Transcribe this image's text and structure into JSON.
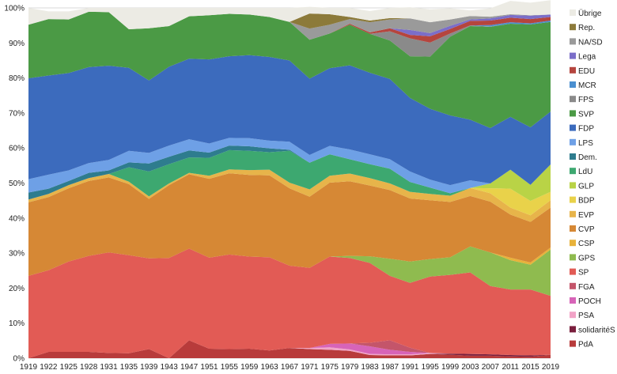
{
  "chart_data": {
    "type": "area",
    "stacked": true,
    "x": [
      "1919",
      "1922",
      "1925",
      "1928",
      "1931",
      "1935",
      "1939",
      "1943",
      "1947",
      "1951",
      "1955",
      "1959",
      "1963",
      "1967",
      "1971",
      "1975",
      "1979",
      "1983",
      "1987",
      "1991",
      "1995",
      "1999",
      "2003",
      "2007",
      "2011",
      "2015",
      "2019"
    ],
    "y_ticks": [
      "0%",
      "10%",
      "20%",
      "30%",
      "40%",
      "50%",
      "60%",
      "70%",
      "80%",
      "90%",
      "100%"
    ],
    "ylim": [
      0,
      100
    ],
    "grid": true,
    "legend_position": "right",
    "series": [
      {
        "name": "PdA",
        "color": "#b83b3b",
        "values": [
          0,
          1.8,
          1.8,
          1.8,
          1.5,
          1.4,
          2.6,
          0,
          5.1,
          2.7,
          2.6,
          2.7,
          2.2,
          2.9,
          2.6,
          2.4,
          2.1,
          0.9,
          0.8,
          0.8,
          1.2,
          1.0,
          0.7,
          0.7,
          0.5,
          0.4,
          1.0
        ]
      },
      {
        "name": "solidaritéS",
        "color": "#7a1f3d",
        "values": [
          0,
          0,
          0,
          0,
          0,
          0,
          0,
          0,
          0,
          0,
          0,
          0,
          0,
          0,
          0,
          0,
          0,
          0,
          0,
          0,
          0,
          0.3,
          0.5,
          0.4,
          0.4,
          0.4,
          0
        ]
      },
      {
        "name": "PSA",
        "color": "#f2a3c7",
        "values": [
          0,
          0,
          0,
          0,
          0,
          0,
          0,
          0,
          0,
          0,
          0,
          0,
          0,
          0,
          0.3,
          0.7,
          0.4,
          0.3,
          0.3,
          0.3,
          0.3,
          0,
          0,
          0,
          0,
          0,
          0
        ]
      },
      {
        "name": "POCH",
        "color": "#d764b8",
        "values": [
          0,
          0,
          0,
          0,
          0,
          0,
          0,
          0,
          0,
          0,
          0,
          0,
          0,
          0,
          0,
          1.0,
          1.7,
          2.2,
          1.3,
          0.7,
          0,
          0,
          0,
          0,
          0,
          0,
          0
        ]
      },
      {
        "name": "FGA",
        "color": "#c4556a",
        "values": [
          0,
          0,
          0,
          0,
          0,
          0,
          0,
          0,
          0,
          0,
          0,
          0,
          0,
          0,
          0,
          0,
          0,
          1.0,
          2.7,
          1.2,
          0,
          0,
          0,
          0,
          0,
          0,
          0
        ]
      },
      {
        "name": "SP",
        "color": "#e25b55",
        "values": [
          23.5,
          23.3,
          25.8,
          27.4,
          28.7,
          28.0,
          25.9,
          28.6,
          26.2,
          26.0,
          27.0,
          26.3,
          26.6,
          23.5,
          22.9,
          24.9,
          24.4,
          22.8,
          18.4,
          18.5,
          21.8,
          22.5,
          23.3,
          19.5,
          18.7,
          18.8,
          16.8
        ]
      },
      {
        "name": "GPS",
        "color": "#8fbb4f",
        "values": [
          0,
          0,
          0,
          0,
          0,
          0,
          0,
          0,
          0,
          0,
          0,
          0,
          0,
          0,
          0,
          0,
          0.6,
          1.9,
          4.9,
          6.1,
          5.0,
          5.0,
          7.4,
          9.6,
          8.4,
          7.1,
          13.2
        ]
      },
      {
        "name": "CSP",
        "color": "#e8b23a",
        "values": [
          0,
          0,
          0,
          0,
          0,
          0,
          0,
          0,
          0,
          0,
          0,
          0,
          0,
          0,
          0,
          0,
          0,
          0,
          0,
          0,
          0,
          0,
          0,
          0,
          0.7,
          0.6,
          0.6
        ]
      },
      {
        "name": "CVP",
        "color": "#d68835",
        "values": [
          21.0,
          20.9,
          20.9,
          21.4,
          21.4,
          20.3,
          17.0,
          20.8,
          21.2,
          22.5,
          23.2,
          23.3,
          23.4,
          22.1,
          20.3,
          21.1,
          21.3,
          20.2,
          19.6,
          18.0,
          16.8,
          15.8,
          14.4,
          14.5,
          12.3,
          11.6,
          11.4
        ]
      },
      {
        "name": "EVP",
        "color": "#e7b44a",
        "values": [
          0.8,
          0.9,
          0.9,
          0.8,
          1.0,
          0.7,
          0.7,
          0.5,
          0.4,
          0.9,
          1.1,
          1.4,
          1.6,
          1.6,
          2.1,
          2.0,
          2.2,
          2.1,
          1.9,
          1.9,
          1.8,
          1.8,
          2.3,
          2.4,
          2.0,
          1.9,
          2.1
        ]
      },
      {
        "name": "BDP",
        "color": "#e9d24a",
        "values": [
          0,
          0,
          0,
          0,
          0,
          0,
          0,
          0,
          0,
          0,
          0,
          0,
          0,
          0,
          0,
          0,
          0,
          0,
          0,
          0,
          0,
          0,
          0,
          1.4,
          5.4,
          4.1,
          2.4
        ]
      },
      {
        "name": "GLP",
        "color": "#b9d346",
        "values": [
          0,
          0,
          0,
          0,
          0,
          0,
          0,
          0,
          0,
          0,
          0,
          0,
          0,
          0,
          0,
          0,
          0,
          0,
          0,
          0,
          0,
          0,
          0,
          1.4,
          5.4,
          4.6,
          7.8
        ]
      },
      {
        "name": "LdU",
        "color": "#3da870",
        "values": [
          0,
          0,
          0,
          0,
          0,
          4.1,
          7.1,
          5.5,
          4.4,
          5.1,
          5.5,
          5.5,
          5.0,
          9.1,
          7.6,
          6.1,
          4.1,
          4.0,
          4.2,
          2.8,
          1.8,
          0.7,
          0,
          0,
          0,
          0,
          0
        ]
      },
      {
        "name": "Dem.",
        "color": "#2e7c8e",
        "values": [
          2.0,
          1.5,
          1.2,
          1.5,
          1.0,
          1.4,
          2.3,
          2.1,
          2.0,
          1.5,
          1.3,
          1.3,
          1.1,
          0.3,
          0,
          0,
          0,
          0,
          0,
          0,
          0,
          0,
          0,
          0,
          0,
          0,
          0
        ]
      },
      {
        "name": "LPS",
        "color": "#6ea0e6",
        "values": [
          3.8,
          4.0,
          3.0,
          2.8,
          3.0,
          3.3,
          3.0,
          3.2,
          3.2,
          2.6,
          2.2,
          2.3,
          2.2,
          2.3,
          2.2,
          2.4,
          2.8,
          2.8,
          2.7,
          3.0,
          2.3,
          2.3,
          2.2,
          0,
          0,
          0,
          0
        ]
      },
      {
        "name": "FDP",
        "color": "#3c6bbd",
        "values": [
          28.8,
          28.3,
          27.8,
          27.4,
          26.9,
          23.7,
          20.7,
          22.5,
          23.0,
          24.0,
          23.3,
          23.7,
          23.9,
          23.2,
          21.8,
          22.2,
          24.0,
          23.3,
          22.9,
          21.0,
          20.2,
          19.9,
          17.3,
          15.8,
          15.1,
          16.4,
          15.1
        ]
      },
      {
        "name": "SVP",
        "color": "#4b9a45",
        "values": [
          15.3,
          16.1,
          15.3,
          15.8,
          15.3,
          11.0,
          14.9,
          11.6,
          12.1,
          12.6,
          12.1,
          11.6,
          11.4,
          11.0,
          11.1,
          9.9,
          11.6,
          11.1,
          11.0,
          11.9,
          14.9,
          22.5,
          26.7,
          28.9,
          26.6,
          29.4,
          25.6
        ]
      },
      {
        "name": "FPS",
        "color": "#8a8a8a",
        "values": [
          0,
          0,
          0,
          0,
          0,
          0,
          0,
          0,
          0,
          0,
          0,
          0,
          0,
          0,
          0,
          0,
          0,
          0,
          2.6,
          5.1,
          4.0,
          0.9,
          0.2,
          0.1,
          0,
          0,
          0
        ]
      },
      {
        "name": "MCR",
        "color": "#4a8fd0",
        "values": [
          0,
          0,
          0,
          0,
          0,
          0,
          0,
          0,
          0,
          0,
          0,
          0,
          0,
          0,
          0,
          0,
          0,
          0,
          0,
          0,
          0,
          0,
          0,
          0.4,
          0.4,
          0.3,
          0.4
        ]
      },
      {
        "name": "EDU",
        "color": "#b5453e",
        "values": [
          0,
          0,
          0,
          0,
          0,
          0,
          0,
          0,
          0,
          0,
          0,
          0,
          0,
          0,
          0,
          0,
          0.3,
          0.4,
          0.9,
          1.0,
          1.8,
          1.3,
          1.3,
          1.3,
          1.3,
          1.2,
          1.0
        ]
      },
      {
        "name": "Lega",
        "color": "#7b6ec9",
        "values": [
          0,
          0,
          0,
          0,
          0,
          0,
          0,
          0,
          0,
          0,
          0,
          0,
          0,
          0,
          0,
          0,
          0,
          0,
          0,
          1.4,
          0.9,
          0.9,
          0.4,
          0.6,
          0.8,
          1.0,
          0.7
        ]
      },
      {
        "name": "NA/SD",
        "color": "#9a9a9a",
        "values": [
          0,
          0,
          0,
          0,
          0,
          0,
          0,
          0,
          0,
          0,
          0,
          0,
          0,
          0,
          3.2,
          2.5,
          1.3,
          2.9,
          2.5,
          3.3,
          3.1,
          1.8,
          1.0,
          0.5,
          0.2,
          0.1,
          0
        ]
      },
      {
        "name": "Rep.",
        "color": "#8c7a3a",
        "values": [
          0,
          0,
          0,
          0,
          0,
          0,
          0,
          0,
          0,
          0,
          0,
          0,
          0,
          0,
          4.3,
          3.0,
          0.6,
          0.5,
          0.4,
          0,
          0,
          0,
          0,
          0,
          0,
          0,
          0
        ]
      },
      {
        "name": "Übrige",
        "color": "#ecebe4",
        "values": [
          4.8,
          2.2,
          2.3,
          1.1,
          1.2,
          6.1,
          5.8,
          5.2,
          2.4,
          2.1,
          1.7,
          1.9,
          2.6,
          4.0,
          1.9,
          1.8,
          2.6,
          2.7,
          2.9,
          3.2,
          3.7,
          3.2,
          1.6,
          2.4,
          3.8,
          3.6,
          4.1
        ]
      }
    ]
  }
}
